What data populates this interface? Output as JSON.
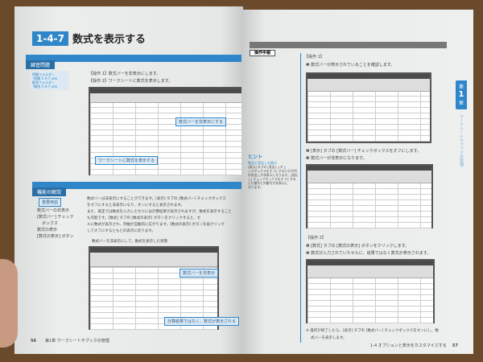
{
  "left_page": {
    "section_number": "1-4-7",
    "section_title": "数式を表示する",
    "practice_heading": "練習問題",
    "folders": [
      "問題フォルダー",
      "└問題 1-4-7.xlsx",
      "解答フォルダー",
      "└解答 1-4-7.xlsx"
    ],
    "tasks": [
      "【操作 1】数式バーを非表示にします。",
      "【操作 2】ワークシートに数式を表示します。"
    ],
    "callouts_top": [
      "数式バーを非表示にする",
      "ワークシートに数式を表示する"
    ],
    "explanation_heading": "機能の解説",
    "key_terms_label": "重要用語",
    "key_terms": [
      "数式バーの非表示",
      "[数式バー] チェック",
      "ボックス",
      "数式の表示",
      "[数式の表示] ボタン"
    ],
    "body": [
      "数式バーは非表示にすることができます。[表示] タブの [数式バー] チェックボックス",
      "をオフにすると非表示になり、オンにすると表示されます。",
      "また、既定では数式を入力したセルには計算結果が表示されますが、数式を表示すること",
      "も可能です。[数式] タブの [数式の表示] ボタンをクリックすると、セ",
      "ルに数式が表示され、列幅が自動的に広がります。[数式の表示] ボタンを再クリック",
      "してオフにするともとの表示に戻ります。"
    ],
    "figure_caption": "数式バーを非表示にして、数式を表示した状態",
    "callouts_bottom": [
      "数式バーを非表示",
      "計算結果ではなく、数式が表示される"
    ],
    "page_number": "56",
    "chapter_footer": "第1章 ワークシートやブックの管理"
  },
  "right_page": {
    "procedure_heading": "操作手順",
    "op1_label": "【操作 1】",
    "steps": [
      "❶ 数式バーが表示されていることを確認します。",
      "❷ [表示] タブの [数式バー] チェックボックスをオフにします。",
      "❸ 数式バーが非表示になります。",
      "❹ [数式] タブの [数式の表示] ボタンをクリックします。",
      "❺ 数式が入力されていたセルに、結果ではなく数式が表示されます。"
    ],
    "op2_label": "【操作 2】",
    "note": [
      "※ 操作が終了したら、[表示] タブの [数式バー] チェックボックスをオンにし、数",
      "式バーを表示します。"
    ],
    "hint_label": "ヒント",
    "hint_title": "数式と見出しの表示",
    "hint_body": [
      "[表示] タブの [見出し] チェ",
      "ックボックスをオフにすると行や列",
      "の見出しが非表示になります。[見出",
      "し] チェックボックスをオフにする",
      "と行番号と列番号が非表示に",
      "なります。"
    ],
    "chapter_tab": {
      "label": "第",
      "number": "1",
      "suffix": "章"
    },
    "chapter_side_title": "ワークシートやブックの管理",
    "footer_section": "1-4 オプションと表示をカスタマイズする",
    "page_number": "57"
  },
  "colors": {
    "accent": "#2f86c8",
    "background": "#6b4a2c"
  }
}
